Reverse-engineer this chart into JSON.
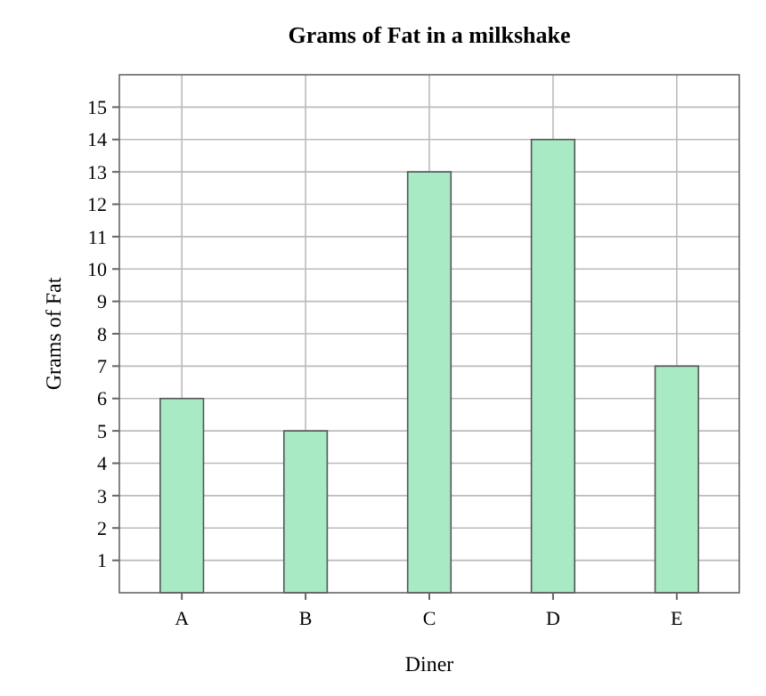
{
  "chart_data": {
    "type": "bar",
    "title": "Grams of Fat in a milkshake",
    "xlabel": "Diner",
    "ylabel": "Grams of Fat",
    "categories": [
      "A",
      "B",
      "C",
      "D",
      "E"
    ],
    "values": [
      6,
      5,
      13,
      14,
      7
    ],
    "color": "#a8eac4",
    "ylim": [
      0,
      16
    ],
    "yticks": [
      1,
      2,
      3,
      4,
      5,
      6,
      7,
      8,
      9,
      10,
      11,
      12,
      13,
      14,
      15
    ],
    "grid": true
  }
}
